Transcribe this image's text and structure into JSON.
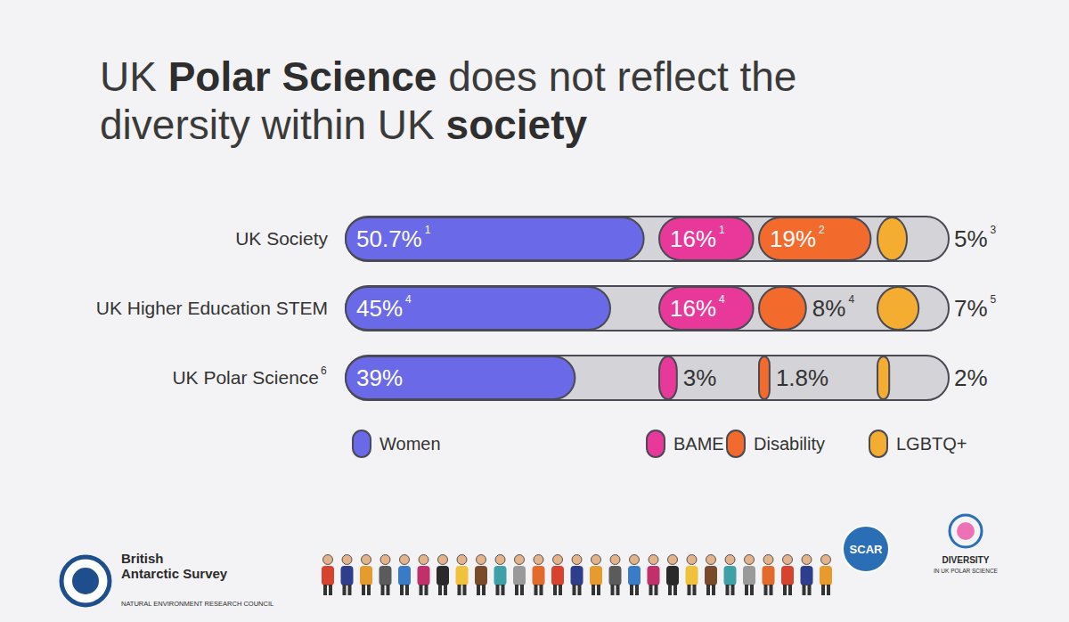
{
  "chart_data": {
    "type": "bar",
    "orientation": "horizontal",
    "title": "UK Polar Science does not reflect the diversity within UK society",
    "title_emphasis": [
      "Polar Science",
      "society"
    ],
    "categories": [
      "UK Society",
      "UK Higher Education STEM",
      "UK Polar Science"
    ],
    "category_footnotes": [
      null,
      null,
      "6"
    ],
    "series": [
      {
        "name": "Women",
        "color": "#6a6ae8",
        "values": [
          50.7,
          45,
          39
        ],
        "value_labels": [
          "50.7%",
          "45%",
          "39%"
        ],
        "footnotes": [
          "1",
          "4",
          null
        ]
      },
      {
        "name": "BAME",
        "color": "#e8399a",
        "values": [
          16,
          16,
          3
        ],
        "value_labels": [
          "16%",
          "16%",
          "3%"
        ],
        "footnotes": [
          "1",
          "4",
          null
        ]
      },
      {
        "name": "Disability",
        "color": "#f26a2c",
        "values": [
          19,
          8,
          1.8
        ],
        "value_labels": [
          "19%",
          "8%",
          "1.8%"
        ],
        "footnotes": [
          "2",
          "4",
          null
        ]
      },
      {
        "name": "LGBTQ+",
        "color": "#f4ad30",
        "values": [
          5,
          7,
          2
        ],
        "value_labels": [
          "5%",
          "7%",
          "2%"
        ],
        "footnotes": [
          "3",
          "5",
          null
        ]
      }
    ],
    "data_labels": true,
    "legend": "bottom",
    "tick_labels": false
  },
  "logos": {
    "bas": {
      "lines": [
        "British",
        "Antarctic Survey"
      ],
      "subtitle": "NATURAL ENVIRONMENT RESEARCH COUNCIL"
    },
    "scar": "SCAR",
    "diversity": {
      "lines": [
        "DIVERSITY",
        "IN UK POLAR SCIENCE"
      ]
    }
  }
}
